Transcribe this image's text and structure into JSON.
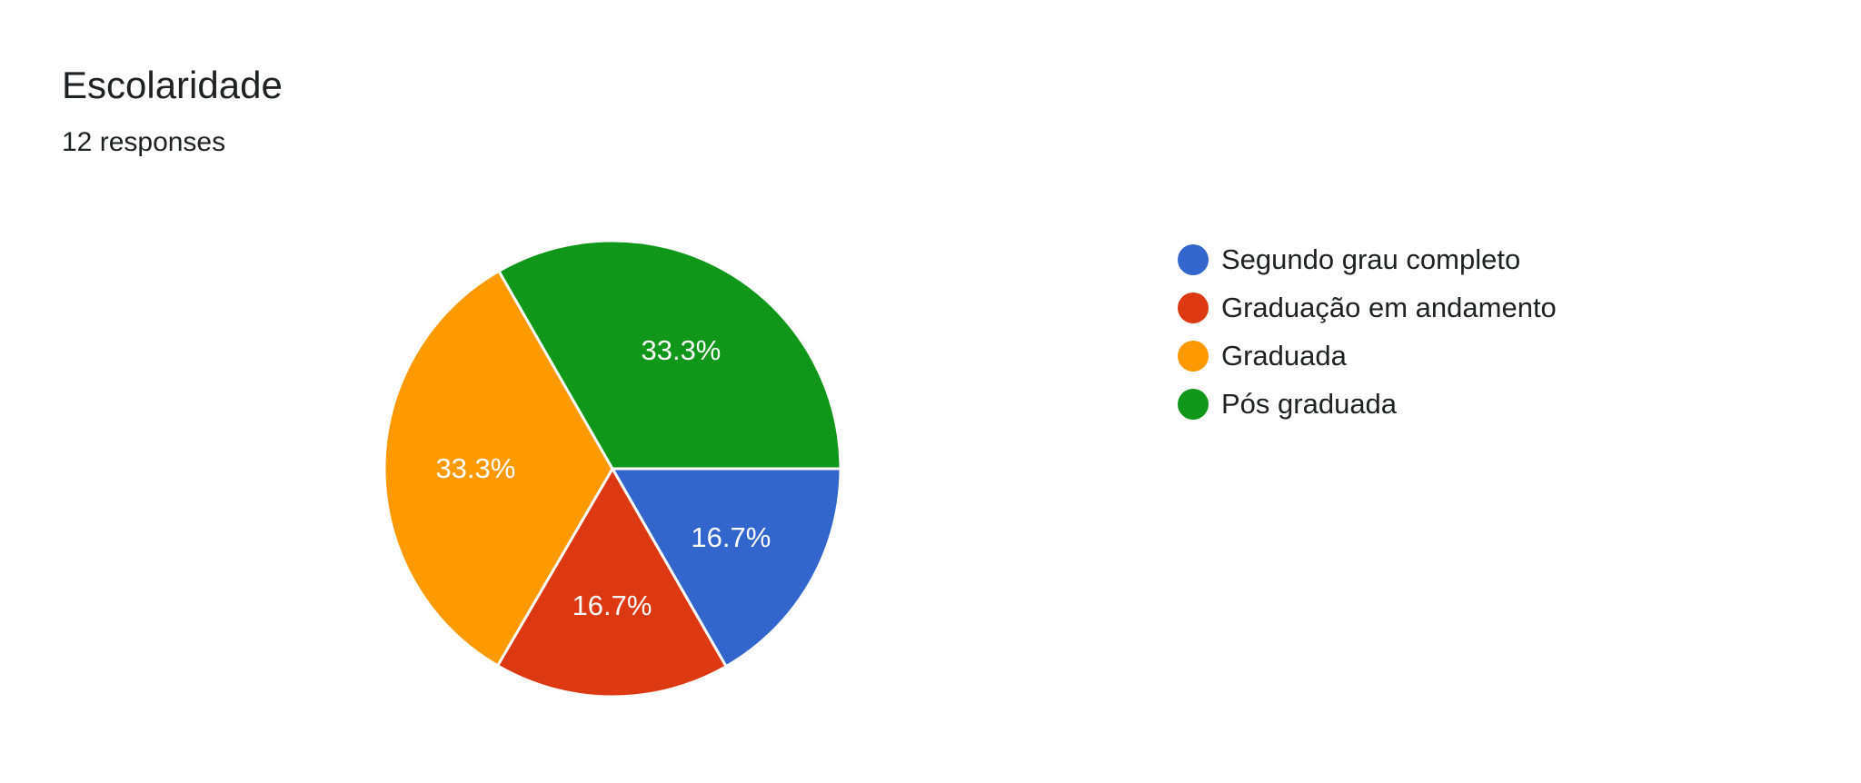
{
  "card": {
    "title": "Escolaridade",
    "subtitle": "12 responses"
  },
  "chart_data": {
    "type": "pie",
    "title": "Escolaridade",
    "subtitle": "12 responses",
    "legend_position": "right",
    "slices": [
      {
        "label": "Segundo grau completo",
        "value": 16.7,
        "display": "16.7%",
        "color": "#3366cc"
      },
      {
        "label": "Graduação em andamento",
        "value": 16.7,
        "display": "16.7%",
        "color": "#dc3912"
      },
      {
        "label": "Graduada",
        "value": 33.3,
        "display": "33.3%",
        "color": "#ff9900"
      },
      {
        "label": "Pós graduada",
        "value": 33.3,
        "display": "33.3%",
        "color": "#109618"
      }
    ]
  }
}
